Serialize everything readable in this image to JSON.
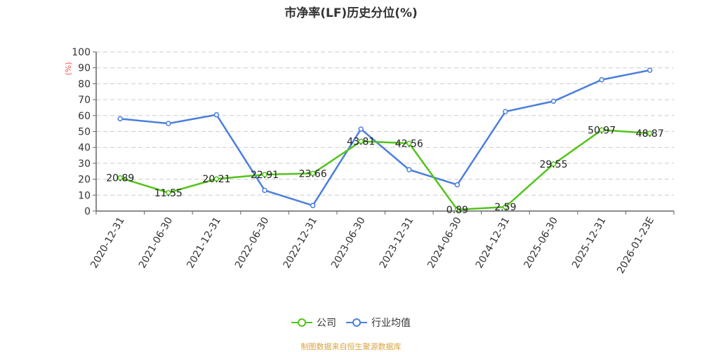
{
  "chart_data": {
    "type": "line",
    "title": "市净率(LF)历史分位(%)",
    "xlabel": "",
    "ylabel": "(%)",
    "ylim": [
      0,
      100
    ],
    "yticks": [
      0,
      10,
      20,
      30,
      40,
      50,
      60,
      70,
      80,
      90,
      100
    ],
    "grid": true,
    "legend_position": "bottom",
    "categories": [
      "2020-12-31",
      "2021-06-30",
      "2021-12-31",
      "2022-06-30",
      "2022-12-31",
      "2023-06-30",
      "2023-12-31",
      "2024-06-30",
      "2024-12-31",
      "2025-06-30",
      "2025-12-31",
      "2026-01-23E"
    ],
    "series": [
      {
        "name": "公司",
        "color": "#52c41a",
        "labeled": true,
        "values": [
          20.89,
          11.55,
          20.21,
          22.91,
          23.66,
          43.81,
          42.56,
          0.89,
          2.59,
          29.55,
          50.97,
          48.87
        ]
      },
      {
        "name": "行业均值",
        "color": "#4a7fdc",
        "labeled": false,
        "values": [
          58,
          55,
          60.5,
          13,
          3.5,
          51.5,
          26,
          16.5,
          62.5,
          69,
          82.5,
          88.5
        ]
      }
    ]
  },
  "title": "市净率(LF)历史分位(%)",
  "legend": {
    "company": "公司",
    "industry": "行业均值"
  },
  "source": "制图数据来自恒生聚源数据库",
  "y_unit": "(%)"
}
